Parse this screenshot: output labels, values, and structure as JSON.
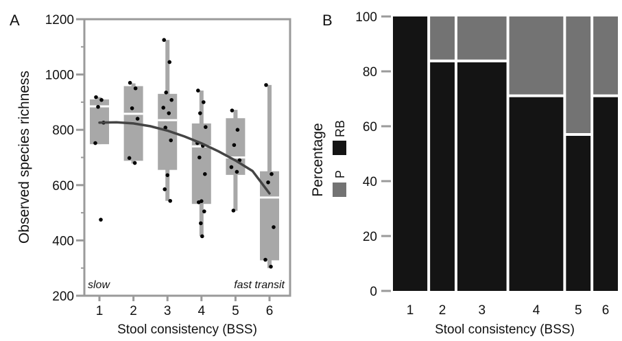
{
  "colors": {
    "frame": "#9a9a9a",
    "box": "#a8a8a8",
    "median": "#ffffff",
    "point": "#000000",
    "curve": "#444444",
    "rb": "#141414",
    "p": "#737373"
  },
  "chart_data": [
    {
      "panel_label": "A",
      "type": "box",
      "xlabel": "Stool consistency (BSS)",
      "ylabel": "Observed species richness",
      "categories": [
        "1",
        "2",
        "3",
        "4",
        "5",
        "6"
      ],
      "ylim": [
        200,
        1200
      ],
      "yticks": [
        200,
        400,
        600,
        800,
        1000,
        1200
      ],
      "grid": false,
      "annotations": {
        "left": "slow",
        "right": "fast transit"
      },
      "boxes": [
        {
          "category": "1",
          "q1": 748,
          "median": 885,
          "q3": 910,
          "whisker_low": 748,
          "whisker_high": 918
        },
        {
          "category": "2",
          "q1": 688,
          "median": 858,
          "q3": 958,
          "whisker_low": 678,
          "whisker_high": 968
        },
        {
          "category": "3",
          "q1": 655,
          "median": 835,
          "q3": 930,
          "whisker_low": 543,
          "whisker_high": 1125
        },
        {
          "category": "4",
          "q1": 532,
          "median": 740,
          "q3": 823,
          "whisker_low": 415,
          "whisker_high": 942
        },
        {
          "category": "5",
          "q1": 637,
          "median": 700,
          "q3": 842,
          "whisker_low": 507,
          "whisker_high": 872
        },
        {
          "category": "6",
          "q1": 328,
          "median": 555,
          "q3": 650,
          "whisker_low": 300,
          "whisker_high": 962
        }
      ],
      "points": [
        {
          "category": "1",
          "values": [
            918,
            908,
            883,
            826,
            752,
            475
          ]
        },
        {
          "category": "2",
          "values": [
            970,
            950,
            878,
            840,
            698,
            680
          ]
        },
        {
          "category": "3",
          "values": [
            1125,
            1045,
            935,
            908,
            880,
            860,
            808,
            762,
            636,
            585,
            543
          ]
        },
        {
          "category": "4",
          "values": [
            942,
            900,
            860,
            810,
            752,
            742,
            700,
            640,
            542,
            538,
            505,
            462,
            415
          ]
        },
        {
          "category": "5",
          "values": [
            870,
            800,
            745,
            690,
            665,
            648,
            508
          ]
        },
        {
          "category": "6",
          "values": [
            962,
            640,
            610,
            448,
            330,
            305
          ]
        }
      ],
      "trend": {
        "x": [
          1,
          1.5,
          2,
          2.5,
          3,
          3.5,
          4,
          4.5,
          5,
          5.5,
          6
        ],
        "y": [
          826,
          827,
          823,
          813,
          797,
          776,
          751,
          722,
          689,
          651,
          570
        ]
      }
    },
    {
      "panel_label": "B",
      "type": "stacked_bar",
      "xlabel": "Stool consistency (BSS)",
      "ylabel": "Percentage",
      "categories": [
        "1",
        "2",
        "3",
        "4",
        "5",
        "6"
      ],
      "widths": [
        7,
        5,
        10,
        11,
        5,
        5
      ],
      "ylim": [
        0,
        100
      ],
      "yticks": [
        0,
        20,
        40,
        60,
        80,
        100
      ],
      "legend": {
        "position": "left",
        "entries": [
          "RB",
          "P"
        ]
      },
      "series": [
        {
          "name": "RB",
          "values": [
            100,
            83.3,
            83.3,
            70.6,
            56.5,
            70.6
          ]
        },
        {
          "name": "P",
          "values": [
            0,
            16.7,
            16.7,
            29.4,
            43.5,
            29.4
          ]
        }
      ]
    }
  ]
}
